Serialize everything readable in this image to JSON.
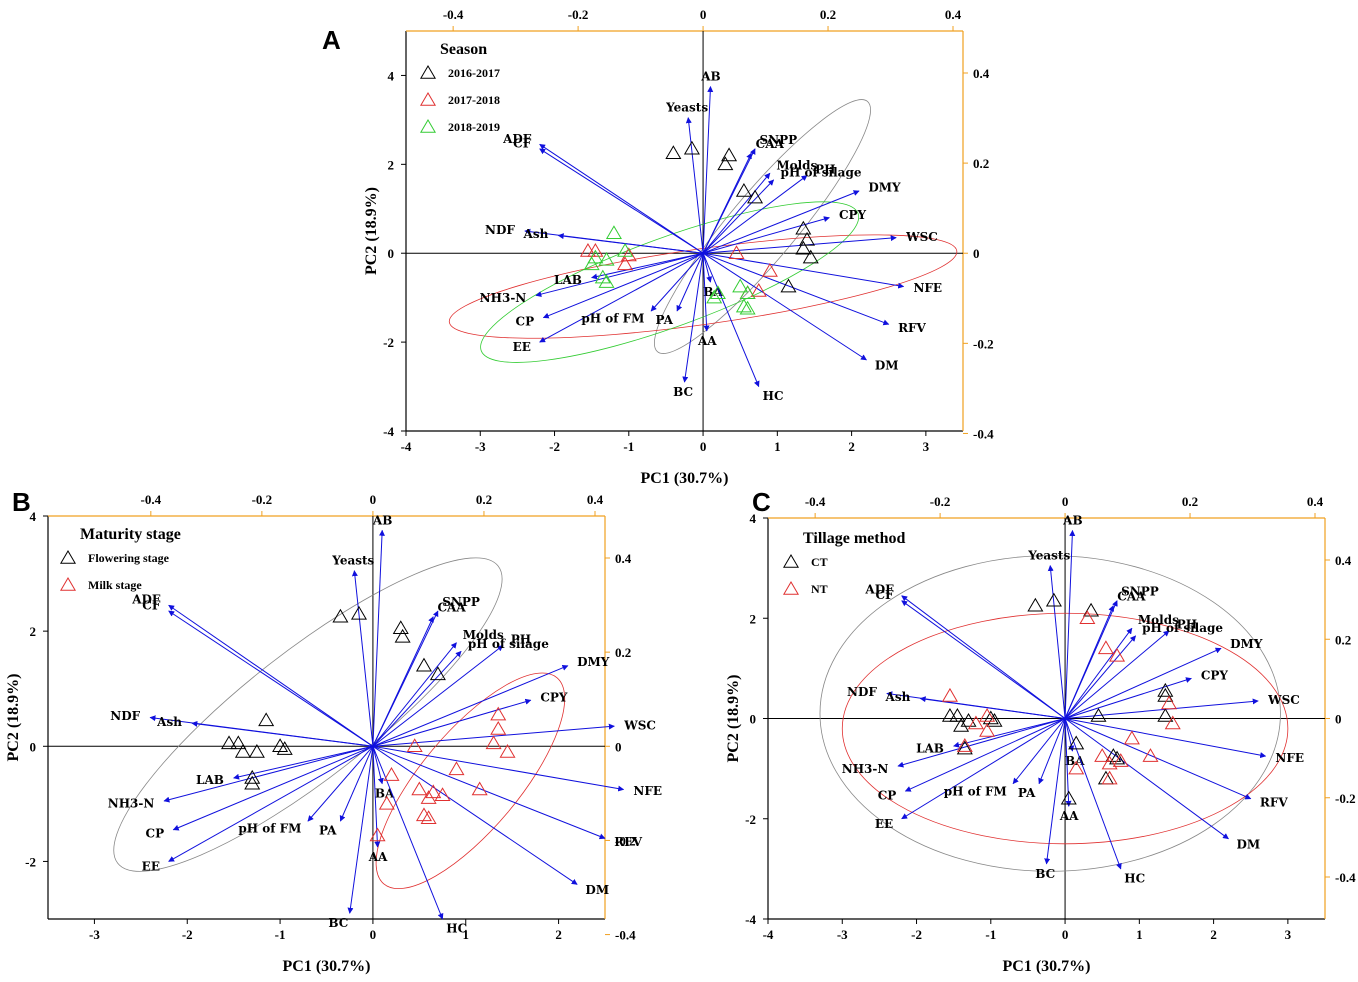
{
  "common": {
    "xlabel": "PC1 (30.7%)",
    "ylabel": "PC2 (18.9%)",
    "colors": {
      "arrow": "#1010dd",
      "axis_secondary": "#f0a020",
      "black": "#000000",
      "red": "#e03030",
      "green": "#33cc33",
      "grey_ellipse": "#888888"
    }
  },
  "chart_data": [
    {
      "id": "A",
      "type": "scatter",
      "subtype": "pca-biplot",
      "panel_label": "A",
      "legend_title": "Season",
      "xlim": [
        -4,
        3.5
      ],
      "ylim": [
        -4,
        5
      ],
      "x_ticks": [
        -4,
        -3,
        -2,
        -1,
        0,
        1,
        2,
        3
      ],
      "y_ticks": [
        -4,
        -2,
        0,
        2,
        4
      ],
      "top_ticks": [
        -0.4,
        -0.2,
        0.0,
        0.2,
        0.4
      ],
      "right_ticks": [
        -0.4,
        -0.2,
        0.0,
        0.2,
        0.4
      ],
      "groups": [
        {
          "name": "2016-2017",
          "color": "#000000",
          "points": [
            [
              -0.4,
              2.25
            ],
            [
              -0.15,
              2.35
            ],
            [
              0.3,
              2.0
            ],
            [
              0.35,
              2.2
            ],
            [
              0.55,
              1.4
            ],
            [
              0.7,
              1.25
            ],
            [
              1.35,
              0.55
            ],
            [
              1.4,
              0.3
            ],
            [
              1.35,
              0.1
            ],
            [
              1.45,
              -0.1
            ],
            [
              1.15,
              -0.75
            ]
          ]
        },
        {
          "name": "2017-2018",
          "color": "#e03030",
          "points": [
            [
              -1.55,
              0.05
            ],
            [
              -1.45,
              0.05
            ],
            [
              -1.0,
              -0.05
            ],
            [
              -1.05,
              -0.25
            ],
            [
              0.45,
              0.0
            ],
            [
              0.9,
              -0.4
            ],
            [
              0.75,
              -0.85
            ],
            [
              0.6,
              -0.9
            ]
          ]
        },
        {
          "name": "2018-2019",
          "color": "#33cc33",
          "points": [
            [
              -1.2,
              0.45
            ],
            [
              -1.05,
              0.05
            ],
            [
              -1.45,
              -0.1
            ],
            [
              -1.3,
              -0.15
            ],
            [
              -1.5,
              -0.25
            ],
            [
              -1.35,
              -0.55
            ],
            [
              -1.3,
              -0.65
            ],
            [
              0.15,
              -1.0
            ],
            [
              0.5,
              -0.75
            ],
            [
              0.6,
              -0.9
            ],
            [
              0.55,
              -1.2
            ],
            [
              0.6,
              -1.25
            ],
            [
              0.2,
              -0.9
            ]
          ]
        }
      ],
      "ellipses": [
        {
          "group": "2016-2017",
          "cx": 0.8,
          "cy": 0.6,
          "rx": 2.2,
          "ry": 0.75,
          "angle": -50
        },
        {
          "group": "2017-2018",
          "cx": 0.0,
          "cy": -0.75,
          "rx": 3.45,
          "ry": 0.85,
          "angle": -8
        },
        {
          "group": "2018-2019",
          "cx": -0.45,
          "cy": -0.65,
          "rx": 2.7,
          "ry": 1.0,
          "angle": -20
        }
      ]
    },
    {
      "id": "B",
      "type": "scatter",
      "subtype": "pca-biplot",
      "panel_label": "B",
      "legend_title": "Maturity stage",
      "xlim": [
        -3.5,
        2.5
      ],
      "ylim": [
        -3,
        4
      ],
      "x_ticks": [
        -3,
        -2,
        -1,
        0,
        1,
        2
      ],
      "y_ticks": [
        -2,
        0,
        2,
        4
      ],
      "top_ticks": [
        -0.4,
        -0.2,
        0.0,
        0.2,
        0.4
      ],
      "right_ticks": [
        -0.4,
        -0.2,
        0.0,
        0.2,
        0.4
      ],
      "groups": [
        {
          "name": "Flowering stage",
          "color": "#000000",
          "points": [
            [
              -0.35,
              2.25
            ],
            [
              -0.15,
              2.3
            ],
            [
              0.3,
              2.05
            ],
            [
              0.32,
              1.9
            ],
            [
              0.55,
              1.4
            ],
            [
              0.7,
              1.25
            ],
            [
              -1.15,
              0.45
            ],
            [
              -1.55,
              0.05
            ],
            [
              -1.45,
              0.05
            ],
            [
              -1.25,
              -0.1
            ],
            [
              -1.4,
              -0.1
            ],
            [
              -1.0,
              0.0
            ],
            [
              -0.95,
              -0.05
            ],
            [
              -1.3,
              -0.55
            ],
            [
              -1.3,
              -0.65
            ]
          ]
        },
        {
          "name": "Milk stage",
          "color": "#e03030",
          "points": [
            [
              1.35,
              0.55
            ],
            [
              1.35,
              0.3
            ],
            [
              1.3,
              0.05
            ],
            [
              1.45,
              -0.1
            ],
            [
              0.45,
              0.0
            ],
            [
              0.9,
              -0.4
            ],
            [
              1.15,
              -0.75
            ],
            [
              0.5,
              -0.75
            ],
            [
              0.65,
              -0.8
            ],
            [
              0.75,
              -0.85
            ],
            [
              0.6,
              -0.9
            ],
            [
              0.55,
              -1.2
            ],
            [
              0.6,
              -1.25
            ],
            [
              0.2,
              -0.5
            ],
            [
              0.15,
              -1.0
            ],
            [
              0.05,
              -1.55
            ]
          ]
        }
      ],
      "ellipses": [
        {
          "group": "Flowering stage",
          "cx": -0.7,
          "cy": 0.55,
          "rx": 2.6,
          "ry": 1.1,
          "angle": -38
        },
        {
          "group": "Milk stage",
          "cx": 1.05,
          "cy": -0.6,
          "rx": 1.45,
          "ry": 0.85,
          "angle": -50
        }
      ]
    },
    {
      "id": "C",
      "type": "scatter",
      "subtype": "pca-biplot",
      "panel_label": "C",
      "legend_title": "Tillage method",
      "xlim": [
        -4,
        3.5
      ],
      "ylim": [
        -4,
        4
      ],
      "x_ticks": [
        -4,
        -3,
        -2,
        -1,
        0,
        1,
        2,
        3
      ],
      "y_ticks": [
        -4,
        -2,
        0,
        2,
        4
      ],
      "top_ticks": [
        -0.4,
        -0.2,
        0.0,
        0.2,
        0.4
      ],
      "right_ticks": [
        -0.4,
        -0.2,
        0.0,
        0.2,
        0.4
      ],
      "groups": [
        {
          "name": "CT",
          "color": "#000000",
          "points": [
            [
              -0.4,
              2.25
            ],
            [
              -0.15,
              2.35
            ],
            [
              0.35,
              2.15
            ],
            [
              1.35,
              0.55
            ],
            [
              1.35,
              0.45
            ],
            [
              1.35,
              0.05
            ],
            [
              0.45,
              0.05
            ],
            [
              -1.55,
              0.05
            ],
            [
              -1.45,
              0.05
            ],
            [
              -1.3,
              -0.05
            ],
            [
              -1.4,
              -0.15
            ],
            [
              -1.0,
              0.0
            ],
            [
              -0.95,
              -0.05
            ],
            [
              -1.35,
              -0.6
            ],
            [
              0.15,
              -0.5
            ],
            [
              0.55,
              -1.2
            ],
            [
              0.65,
              -0.75
            ],
            [
              0.7,
              -0.8
            ],
            [
              0.05,
              -1.6
            ]
          ]
        },
        {
          "name": "NT",
          "color": "#e03030",
          "points": [
            [
              0.3,
              2.0
            ],
            [
              0.55,
              1.4
            ],
            [
              0.7,
              1.25
            ],
            [
              1.4,
              0.3
            ],
            [
              1.45,
              -0.1
            ],
            [
              -1.55,
              0.45
            ],
            [
              -1.2,
              -0.1
            ],
            [
              -1.05,
              0.05
            ],
            [
              -1.05,
              -0.25
            ],
            [
              -1.35,
              -0.55
            ],
            [
              0.9,
              -0.4
            ],
            [
              1.15,
              -0.75
            ],
            [
              0.5,
              -0.75
            ],
            [
              0.6,
              -0.9
            ],
            [
              0.75,
              -0.85
            ],
            [
              0.6,
              -1.2
            ],
            [
              0.15,
              -1.0
            ]
          ]
        }
      ],
      "ellipses": [
        {
          "group": "CT",
          "cx": -0.2,
          "cy": 0.1,
          "rx": 3.1,
          "ry": 3.15,
          "angle": 0
        },
        {
          "group": "NT",
          "cx": 0.0,
          "cy": -0.2,
          "rx": 3.0,
          "ry": 2.3,
          "angle": 0
        }
      ]
    }
  ],
  "loadings": [
    {
      "label": "AB",
      "x": 0.1,
      "y": 3.75
    },
    {
      "label": "Yeasts",
      "x": -0.2,
      "y": 3.05
    },
    {
      "label": "ADF",
      "x": -2.2,
      "y": 2.45
    },
    {
      "label": "CF",
      "x": -2.2,
      "y": 2.35
    },
    {
      "label": "SNPP",
      "x": 0.7,
      "y": 2.35
    },
    {
      "label": "CAA",
      "x": 0.65,
      "y": 2.25
    },
    {
      "label": "Molds",
      "x": 0.9,
      "y": 1.8
    },
    {
      "label": "PH",
      "x": 1.4,
      "y": 1.75
    },
    {
      "label": "pH of silage",
      "x": 0.95,
      "y": 1.65
    },
    {
      "label": "DMY",
      "x": 2.1,
      "y": 1.4
    },
    {
      "label": "CPY",
      "x": 1.7,
      "y": 0.8
    },
    {
      "label": "WSC",
      "x": 2.6,
      "y": 0.35
    },
    {
      "label": "NDF",
      "x": -2.4,
      "y": 0.5
    },
    {
      "label": "Ash",
      "x": -1.95,
      "y": 0.4
    },
    {
      "label": "LAB",
      "x": -1.5,
      "y": -0.55
    },
    {
      "label": "NH3-N",
      "x": -2.25,
      "y": -0.95
    },
    {
      "label": "CP",
      "x": -2.15,
      "y": -1.45
    },
    {
      "label": "EE",
      "x": -2.2,
      "y": -2.0
    },
    {
      "label": "pH of FM",
      "x": -0.7,
      "y": -1.3
    },
    {
      "label": "PA",
      "x": -0.35,
      "y": -1.3
    },
    {
      "label": "BA",
      "x": 0.1,
      "y": -0.65
    },
    {
      "label": "AA",
      "x": 0.05,
      "y": -1.75
    },
    {
      "label": "BC",
      "x": -0.25,
      "y": -2.9
    },
    {
      "label": "HC",
      "x": 0.75,
      "y": -3.0
    },
    {
      "label": "NFE",
      "x": 2.7,
      "y": -0.75
    },
    {
      "label": "RFV",
      "x": 2.5,
      "y": -1.6
    },
    {
      "label": "DM",
      "x": 2.2,
      "y": -2.4
    }
  ]
}
